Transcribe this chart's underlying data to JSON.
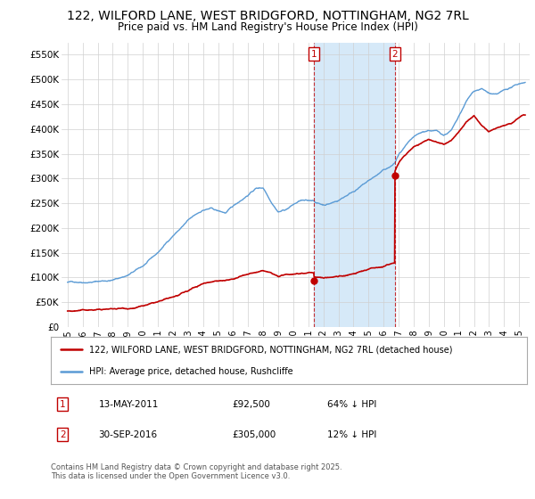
{
  "title": "122, WILFORD LANE, WEST BRIDGFORD, NOTTINGHAM, NG2 7RL",
  "subtitle": "Price paid vs. HM Land Registry's House Price Index (HPI)",
  "ylim": [
    0,
    575000
  ],
  "yticks": [
    0,
    50000,
    100000,
    150000,
    200000,
    250000,
    300000,
    350000,
    400000,
    450000,
    500000,
    550000
  ],
  "ytick_labels": [
    "£0",
    "£50K",
    "£100K",
    "£150K",
    "£200K",
    "£250K",
    "£300K",
    "£350K",
    "£400K",
    "£450K",
    "£500K",
    "£550K"
  ],
  "xlim_left": 1994.6,
  "xlim_right": 2025.7,
  "hpi_color": "#5b9bd5",
  "price_color": "#c00000",
  "shade_color": "#d6e9f8",
  "transaction1_date": 2011.37,
  "transaction1_price": 92500,
  "transaction2_date": 2016.75,
  "transaction2_price": 305000,
  "background_color": "#ffffff",
  "grid_color": "#d0d0d0",
  "legend_entry1": "122, WILFORD LANE, WEST BRIDGFORD, NOTTINGHAM, NG2 7RL (detached house)",
  "legend_entry2": "HPI: Average price, detached house, Rushcliffe",
  "note1_date": "13-MAY-2011",
  "note1_price": "£92,500",
  "note1_hpi": "64% ↓ HPI",
  "note2_date": "30-SEP-2016",
  "note2_price": "£305,000",
  "note2_hpi": "12% ↓ HPI",
  "footer": "Contains HM Land Registry data © Crown copyright and database right 2025.\nThis data is licensed under the Open Government Licence v3.0."
}
